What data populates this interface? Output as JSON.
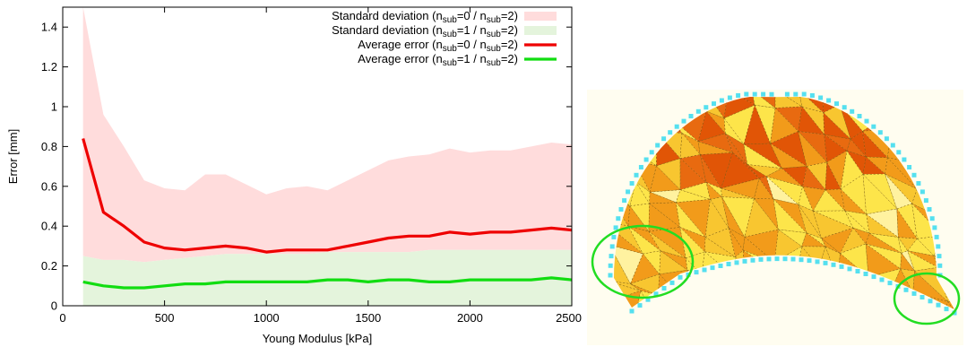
{
  "chart_data": {
    "type": "line",
    "title": "",
    "xlabel": "Young Modulus [kPa]",
    "ylabel": "Error [mm]",
    "xlim": [
      0,
      2500
    ],
    "ylim": [
      0,
      1.5
    ],
    "xticks": [
      "0",
      "500",
      "1000",
      "1500",
      "2000",
      "2500"
    ],
    "yticks": [
      "0",
      "0.2",
      "0.4",
      "0.6",
      "0.8",
      "1",
      "1.2",
      "1.4"
    ],
    "x": [
      100,
      200,
      300,
      400,
      500,
      600,
      700,
      800,
      900,
      1000,
      1100,
      1200,
      1300,
      1400,
      1500,
      1600,
      1700,
      1800,
      1900,
      2000,
      2100,
      2200,
      2300,
      2400,
      2500
    ],
    "bands": [
      {
        "name_main": "Standard deviation (n",
        "sub1": "sub",
        "mid": "=0 / n",
        "sub2": "sub",
        "tail": "=2)",
        "color": "#ffdcdc",
        "upper": [
          1.55,
          0.96,
          0.8,
          0.63,
          0.59,
          0.58,
          0.66,
          0.66,
          0.61,
          0.56,
          0.59,
          0.6,
          0.58,
          0.63,
          0.68,
          0.73,
          0.75,
          0.76,
          0.79,
          0.77,
          0.78,
          0.78,
          0.8,
          0.82,
          0.81
        ],
        "lower": [
          0.25,
          0.23,
          0.23,
          0.22,
          0.23,
          0.24,
          0.25,
          0.26,
          0.26,
          0.26,
          0.26,
          0.26,
          0.27,
          0.27,
          0.27,
          0.27,
          0.27,
          0.28,
          0.28,
          0.28,
          0.28,
          0.28,
          0.28,
          0.28,
          0.28
        ]
      },
      {
        "name_main": "Standard deviation (n",
        "sub1": "sub",
        "mid": "=1 / n",
        "sub2": "sub",
        "tail": "=2)",
        "color": "#e4f4dc",
        "upper": [
          0.25,
          0.23,
          0.23,
          0.22,
          0.23,
          0.24,
          0.25,
          0.26,
          0.26,
          0.26,
          0.26,
          0.26,
          0.27,
          0.27,
          0.27,
          0.27,
          0.27,
          0.28,
          0.28,
          0.28,
          0.28,
          0.28,
          0.28,
          0.28,
          0.28
        ],
        "lower": [
          0,
          0,
          0,
          0,
          0,
          0,
          0,
          0,
          0,
          0,
          0,
          0,
          0,
          0,
          0,
          0,
          0,
          0,
          0,
          0,
          0,
          0,
          0,
          0,
          0
        ]
      }
    ],
    "series": [
      {
        "name_main": "Average error (n",
        "sub1": "sub",
        "mid": "=0 / n",
        "sub2": "sub",
        "tail": "=2)",
        "color": "#ee0000",
        "values": [
          0.84,
          0.47,
          0.4,
          0.32,
          0.29,
          0.28,
          0.29,
          0.3,
          0.29,
          0.27,
          0.28,
          0.28,
          0.28,
          0.3,
          0.32,
          0.34,
          0.35,
          0.35,
          0.37,
          0.36,
          0.37,
          0.37,
          0.38,
          0.39,
          0.38
        ]
      },
      {
        "name_main": "Average error (n",
        "sub1": "sub",
        "mid": "=1 / n",
        "sub2": "sub",
        "tail": "=2)",
        "color": "#11dd11",
        "values": [
          0.12,
          0.1,
          0.09,
          0.09,
          0.1,
          0.11,
          0.11,
          0.12,
          0.12,
          0.12,
          0.12,
          0.12,
          0.13,
          0.13,
          0.12,
          0.13,
          0.13,
          0.12,
          0.12,
          0.13,
          0.13,
          0.13,
          0.13,
          0.14,
          0.13
        ]
      }
    ],
    "grid": false,
    "legend_position": "top-right"
  },
  "mesh_figure": {
    "palette": [
      "#f29b1a",
      "#f8c630",
      "#fde54a",
      "#e86a10",
      "#e15506",
      "#fff2a0",
      "#f5b026"
    ],
    "outline_color": "#55e0ef",
    "highlight_color": "#22dd22",
    "background": "#fffdf0"
  }
}
